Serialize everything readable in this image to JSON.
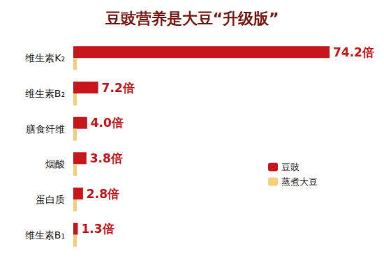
{
  "chart_data": {
    "type": "bar",
    "title": "豆豉营养是大豆“升级版”",
    "orientation": "horizontal",
    "categories": [
      "维生素K₂",
      "维生素B₂",
      "膳食纤维",
      "烟酸",
      "蛋白质",
      "维生素B₁"
    ],
    "series": [
      {
        "name": "豆豉",
        "color": "#c8161d",
        "values": [
          74.2,
          7.2,
          4.0,
          3.8,
          2.8,
          1.3
        ],
        "value_labels": [
          "74.2倍",
          "7.2倍",
          "4.0倍",
          "3.8倍",
          "2.8倍",
          "1.3倍"
        ],
        "data_labels": true
      },
      {
        "name": "蒸煮大豆",
        "color": "#f3cf7a",
        "values": [
          1,
          1,
          1,
          1,
          1,
          1
        ]
      }
    ],
    "xlim": [
      0,
      74.2
    ],
    "tick_labels": "y",
    "grid": false,
    "legend": "right"
  }
}
